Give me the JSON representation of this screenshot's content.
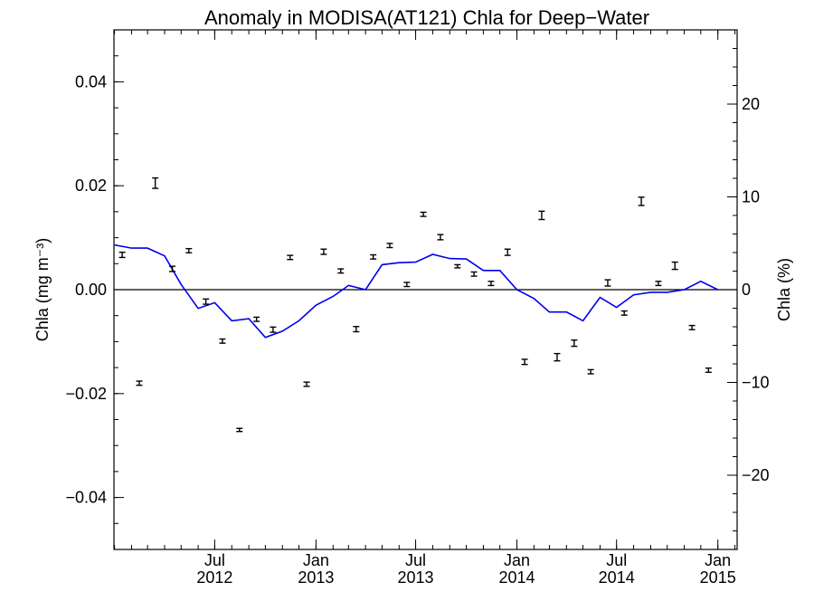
{
  "chart_data": {
    "type": "scatter",
    "title": "Anomaly in MODISA(AT121) Chla for Deep−Water",
    "ylabel_left": "Chla (mg m⁻³)",
    "ylabel_right": "Chla (%)",
    "x_range": [
      "2011-12-31",
      "2015-02-05"
    ],
    "ylim": [
      -0.05,
      0.05
    ],
    "ylim_right": [
      -28,
      28
    ],
    "y_ticks": [
      {
        "value": 0.04,
        "label": "0.04"
      },
      {
        "value": 0.02,
        "label": "0.02"
      },
      {
        "value": 0.0,
        "label": "0.00"
      },
      {
        "value": -0.02,
        "label": "−0.02"
      },
      {
        "value": -0.04,
        "label": "−0.04"
      }
    ],
    "y_ticks_right": [
      {
        "value": 20,
        "label": "20"
      },
      {
        "value": 10,
        "label": "10"
      },
      {
        "value": 0,
        "label": "0"
      },
      {
        "value": -10,
        "label": "−10"
      },
      {
        "value": -20,
        "label": "−20"
      }
    ],
    "x_ticks": [
      {
        "date": "2012-07-01",
        "month": "Jul",
        "year": "2012"
      },
      {
        "date": "2013-01-01",
        "month": "Jan",
        "year": "2013"
      },
      {
        "date": "2013-07-01",
        "month": "Jul",
        "year": "2013"
      },
      {
        "date": "2014-01-01",
        "month": "Jan",
        "year": "2014"
      },
      {
        "date": "2014-07-01",
        "month": "Jul",
        "year": "2014"
      },
      {
        "date": "2015-01-01",
        "month": "Jan",
        "year": "2015"
      }
    ],
    "zero_line": true,
    "series": [
      {
        "type": "errorbar-points",
        "color": "#000000",
        "points": [
          {
            "date": "2012-01-15",
            "y": 0.0067,
            "err": 0.0005
          },
          {
            "date": "2012-02-15",
            "y": -0.018,
            "err": 0.0004
          },
          {
            "date": "2012-03-15",
            "y": 0.0205,
            "err": 0.001
          },
          {
            "date": "2012-04-15",
            "y": 0.004,
            "err": 0.0005
          },
          {
            "date": "2012-05-15",
            "y": 0.0075,
            "err": 0.0004
          },
          {
            "date": "2012-06-15",
            "y": -0.0023,
            "err": 0.0005
          },
          {
            "date": "2012-07-15",
            "y": -0.0099,
            "err": 0.0004
          },
          {
            "date": "2012-08-15",
            "y": -0.027,
            "err": 0.0003
          },
          {
            "date": "2012-09-15",
            "y": -0.0057,
            "err": 0.0004
          },
          {
            "date": "2012-10-15",
            "y": -0.0077,
            "err": 0.0005
          },
          {
            "date": "2012-11-15",
            "y": 0.0062,
            "err": 0.0004
          },
          {
            "date": "2012-12-15",
            "y": -0.0182,
            "err": 0.0004
          },
          {
            "date": "2013-01-15",
            "y": 0.0073,
            "err": 0.0005
          },
          {
            "date": "2013-02-15",
            "y": 0.0036,
            "err": 0.0004
          },
          {
            "date": "2013-03-15",
            "y": -0.0076,
            "err": 0.0005
          },
          {
            "date": "2013-04-15",
            "y": 0.0063,
            "err": 0.0004
          },
          {
            "date": "2013-05-15",
            "y": 0.0085,
            "err": 0.0004
          },
          {
            "date": "2013-06-15",
            "y": 0.001,
            "err": 0.0004
          },
          {
            "date": "2013-07-15",
            "y": 0.0145,
            "err": 0.0004
          },
          {
            "date": "2013-08-15",
            "y": 0.0101,
            "err": 0.0005
          },
          {
            "date": "2013-09-15",
            "y": 0.0045,
            "err": 0.0003
          },
          {
            "date": "2013-10-15",
            "y": 0.003,
            "err": 0.0004
          },
          {
            "date": "2013-11-15",
            "y": 0.0012,
            "err": 0.0004
          },
          {
            "date": "2013-12-15",
            "y": 0.0072,
            "err": 0.0006
          },
          {
            "date": "2014-01-15",
            "y": -0.0139,
            "err": 0.0005
          },
          {
            "date": "2014-02-15",
            "y": 0.0143,
            "err": 0.0008
          },
          {
            "date": "2014-03-15",
            "y": -0.013,
            "err": 0.0007
          },
          {
            "date": "2014-04-15",
            "y": -0.0103,
            "err": 0.0006
          },
          {
            "date": "2014-05-15",
            "y": -0.0158,
            "err": 0.0004
          },
          {
            "date": "2014-06-15",
            "y": 0.0013,
            "err": 0.0006
          },
          {
            "date": "2014-07-15",
            "y": -0.0045,
            "err": 0.0004
          },
          {
            "date": "2014-08-15",
            "y": 0.017,
            "err": 0.0008
          },
          {
            "date": "2014-09-15",
            "y": 0.0012,
            "err": 0.0004
          },
          {
            "date": "2014-10-15",
            "y": 0.0046,
            "err": 0.0007
          },
          {
            "date": "2014-11-15",
            "y": -0.0073,
            "err": 0.0004
          },
          {
            "date": "2014-12-15",
            "y": -0.0155,
            "err": 0.0004
          }
        ]
      },
      {
        "type": "line",
        "color": "#0000ee",
        "points": [
          {
            "date": "2012-01-01",
            "y": 0.0086
          },
          {
            "date": "2012-02-01",
            "y": 0.008
          },
          {
            "date": "2012-03-01",
            "y": 0.008
          },
          {
            "date": "2012-04-01",
            "y": 0.0065
          },
          {
            "date": "2012-05-01",
            "y": 0.001
          },
          {
            "date": "2012-06-01",
            "y": -0.0036
          },
          {
            "date": "2012-07-01",
            "y": -0.0025
          },
          {
            "date": "2012-08-01",
            "y": -0.006
          },
          {
            "date": "2012-09-01",
            "y": -0.0056
          },
          {
            "date": "2012-10-01",
            "y": -0.0092
          },
          {
            "date": "2012-11-01",
            "y": -0.008
          },
          {
            "date": "2012-12-01",
            "y": -0.006
          },
          {
            "date": "2013-01-01",
            "y": -0.003
          },
          {
            "date": "2013-02-01",
            "y": -0.0013
          },
          {
            "date": "2013-03-01",
            "y": 0.0008
          },
          {
            "date": "2013-04-01",
            "y": 0.0
          },
          {
            "date": "2013-05-01",
            "y": 0.0048
          },
          {
            "date": "2013-06-01",
            "y": 0.0052
          },
          {
            "date": "2013-07-01",
            "y": 0.0053
          },
          {
            "date": "2013-08-01",
            "y": 0.0068
          },
          {
            "date": "2013-09-01",
            "y": 0.006
          },
          {
            "date": "2013-10-01",
            "y": 0.0059
          },
          {
            "date": "2013-11-01",
            "y": 0.0037
          },
          {
            "date": "2013-12-01",
            "y": 0.0037
          },
          {
            "date": "2014-01-01",
            "y": 0.0
          },
          {
            "date": "2014-02-01",
            "y": -0.0017
          },
          {
            "date": "2014-03-01",
            "y": -0.0043
          },
          {
            "date": "2014-04-01",
            "y": -0.0043
          },
          {
            "date": "2014-05-01",
            "y": -0.006
          },
          {
            "date": "2014-06-01",
            "y": -0.0015
          },
          {
            "date": "2014-07-01",
            "y": -0.0034
          },
          {
            "date": "2014-08-01",
            "y": -0.001
          },
          {
            "date": "2014-09-01",
            "y": -0.0005
          },
          {
            "date": "2014-10-01",
            "y": -0.0005
          },
          {
            "date": "2014-11-01",
            "y": 0.0
          },
          {
            "date": "2014-12-01",
            "y": 0.0016
          },
          {
            "date": "2015-01-01",
            "y": 0.0
          }
        ]
      }
    ]
  }
}
